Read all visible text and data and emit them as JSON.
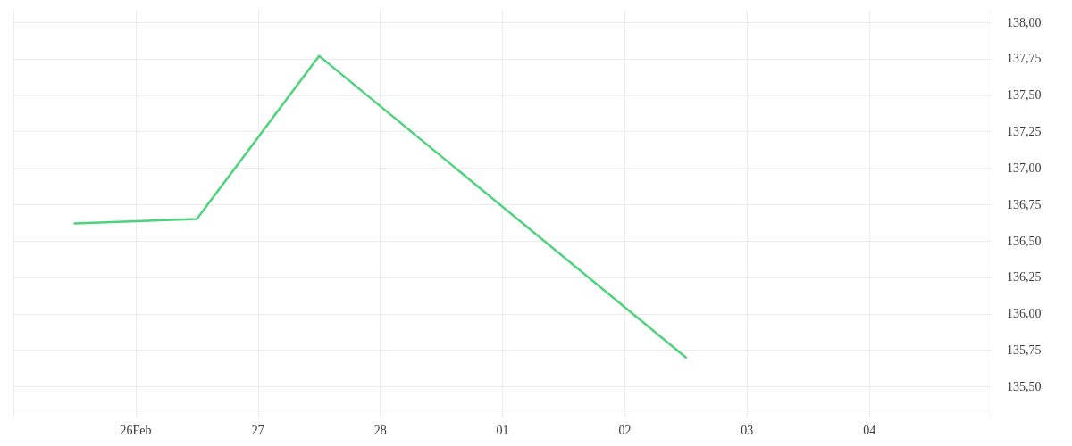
{
  "chart_data": {
    "type": "line",
    "x": [
      "--02-25T12:00",
      "--02-26T12:00",
      "--02-27T12:00",
      "--03-02T12:00"
    ],
    "values": [
      136.62,
      136.65,
      137.77,
      135.7
    ],
    "color": "#4cd37c",
    "xlim": [
      "--02-25",
      "--03-05"
    ],
    "xticks": [
      {
        "value": "--02-25",
        "label": null
      },
      {
        "value": "--02-26",
        "label": "26Feb"
      },
      {
        "value": "--02-27",
        "label": "27"
      },
      {
        "value": "--02-28",
        "label": "28"
      },
      {
        "value": "--03-01",
        "label": "01"
      },
      {
        "value": "--03-02",
        "label": "02"
      },
      {
        "value": "--03-03",
        "label": "03"
      },
      {
        "value": "--03-04",
        "label": "04"
      },
      {
        "value": "--03-05",
        "label": null
      }
    ],
    "ylim": [
      135.35,
      138.08
    ],
    "yticks": [
      {
        "value": 135.5,
        "label": "135,50"
      },
      {
        "value": 135.75,
        "label": "135,75"
      },
      {
        "value": 136,
        "label": "136,00"
      },
      {
        "value": 136.25,
        "label": "136,25"
      },
      {
        "value": 136.5,
        "label": "136,50"
      },
      {
        "value": 136.75,
        "label": "136,75"
      },
      {
        "value": 137,
        "label": "137,00"
      },
      {
        "value": 137.25,
        "label": "137,25"
      },
      {
        "value": 137.5,
        "label": "137,50"
      },
      {
        "value": 137.75,
        "label": "137,75"
      },
      {
        "value": 138,
        "label": "138,00"
      }
    ],
    "grid": true,
    "marker": "none",
    "line_style": "solid"
  }
}
